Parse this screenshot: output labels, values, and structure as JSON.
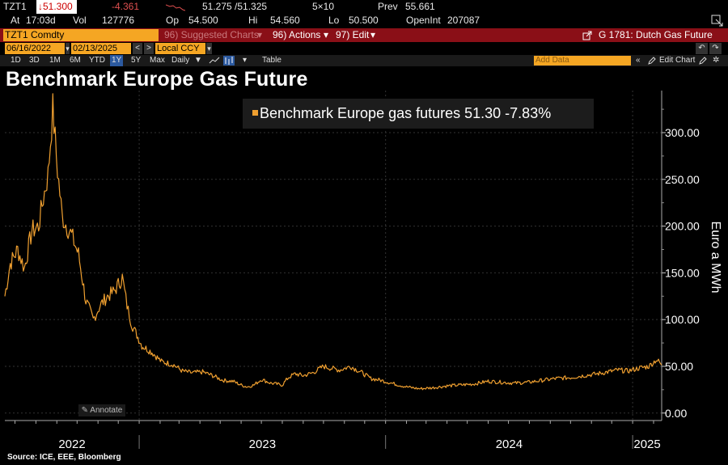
{
  "quote": {
    "ticker": "TZT1",
    "last": "↓51.300",
    "change": "-4.361",
    "bid_ask": "51.275 /51.325",
    "size": "5×10",
    "prev_label": "Prev",
    "prev": "55.661",
    "at_label": "At",
    "time": "17:03d",
    "vol_label": "Vol",
    "vol": "127776",
    "op_label": "Op",
    "op": "54.500",
    "hi_label": "Hi",
    "hi": "54.560",
    "lo_label": "Lo",
    "lo": "50.500",
    "openint_label": "OpenInt",
    "openint": "207087"
  },
  "command_bar": {
    "security": "TZT1 Comdty",
    "suggested": "96) Suggested Charts",
    "actions": "96) Actions",
    "edit": "97) Edit",
    "function": "G 1781: Dutch Gas Future"
  },
  "range": {
    "start": "06/16/2022",
    "end": "02/13/2025",
    "currency": "Local CCY"
  },
  "periods": [
    "1D",
    "3D",
    "1M",
    "6M",
    "YTD",
    "1Y",
    "5Y",
    "Max"
  ],
  "selected_period": "1Y",
  "frequency": "Daily",
  "table_label": "Table",
  "add_data_placeholder": "Add Data",
  "edit_chart_label": "Edit Chart",
  "annotate_label": "Annotate",
  "source": "Source: ICE, EEE, Bloomberg",
  "colors": {
    "series": "#f0a030",
    "accent": "#f5a623",
    "bar": "#8a0f17"
  },
  "chart_data": {
    "type": "line",
    "title": "Benchmark Europe Gas Future",
    "ylabel": "Euro a MWh",
    "ylim": [
      -8,
      345
    ],
    "yticks": [
      0,
      50,
      100,
      150,
      200,
      250,
      300
    ],
    "ytick_labels": [
      "0.00",
      "50.00",
      "100.00",
      "150.00",
      "200.00",
      "250.00",
      "300.00"
    ],
    "xlim": [
      "2022-06-16",
      "2025-02-13"
    ],
    "xtick_labels": [
      "2022",
      "2023",
      "2024",
      "2025"
    ],
    "year_boundaries": [
      "2023-01-01",
      "2024-01-01",
      "2025-01-01"
    ],
    "legend": "Benchmark Europe gas futures 51.30 -7.83%",
    "series": [
      {
        "name": "Benchmark Europe gas futures",
        "x": [
          "2022-06-16",
          "2022-06-24",
          "2022-07-05",
          "2022-07-15",
          "2022-07-26",
          "2022-08-05",
          "2022-08-12",
          "2022-08-19",
          "2022-08-26",
          "2022-09-02",
          "2022-09-09",
          "2022-09-16",
          "2022-09-23",
          "2022-10-03",
          "2022-10-14",
          "2022-10-25",
          "2022-11-04",
          "2022-11-15",
          "2022-11-25",
          "2022-12-07",
          "2022-12-14",
          "2022-12-21",
          "2023-01-05",
          "2023-01-20",
          "2023-02-03",
          "2023-02-20",
          "2023-03-06",
          "2023-03-20",
          "2023-04-05",
          "2023-04-20",
          "2023-05-05",
          "2023-05-20",
          "2023-06-01",
          "2023-06-10",
          "2023-06-20",
          "2023-07-01",
          "2023-07-15",
          "2023-08-01",
          "2023-08-10",
          "2023-08-20",
          "2023-09-01",
          "2023-09-15",
          "2023-10-01",
          "2023-10-12",
          "2023-10-25",
          "2023-11-10",
          "2023-11-25",
          "2023-12-10",
          "2023-12-25",
          "2024-01-15",
          "2024-02-01",
          "2024-02-20",
          "2024-03-10",
          "2024-04-01",
          "2024-04-20",
          "2024-05-10",
          "2024-06-01",
          "2024-06-20",
          "2024-07-10",
          "2024-08-01",
          "2024-08-20",
          "2024-09-10",
          "2024-10-01",
          "2024-10-20",
          "2024-11-10",
          "2024-11-25",
          "2024-12-10",
          "2024-12-25",
          "2025-01-10",
          "2025-01-25",
          "2025-02-05",
          "2025-02-10",
          "2025-02-13"
        ],
        "y": [
          125,
          160,
          175,
          155,
          195,
          200,
          230,
          255,
          325,
          260,
          210,
          200,
          190,
          170,
          120,
          100,
          115,
          125,
          130,
          145,
          115,
          95,
          72,
          65,
          55,
          52,
          45,
          43,
          44,
          40,
          35,
          34,
          30,
          28,
          30,
          36,
          32,
          30,
          38,
          42,
          40,
          43,
          50,
          48,
          46,
          50,
          44,
          37,
          35,
          31,
          28,
          26,
          27,
          29,
          30,
          31,
          34,
          33,
          32,
          33,
          35,
          37,
          38,
          40,
          42,
          44,
          46,
          45,
          48,
          50,
          57,
          54,
          51.3
        ]
      }
    ]
  }
}
